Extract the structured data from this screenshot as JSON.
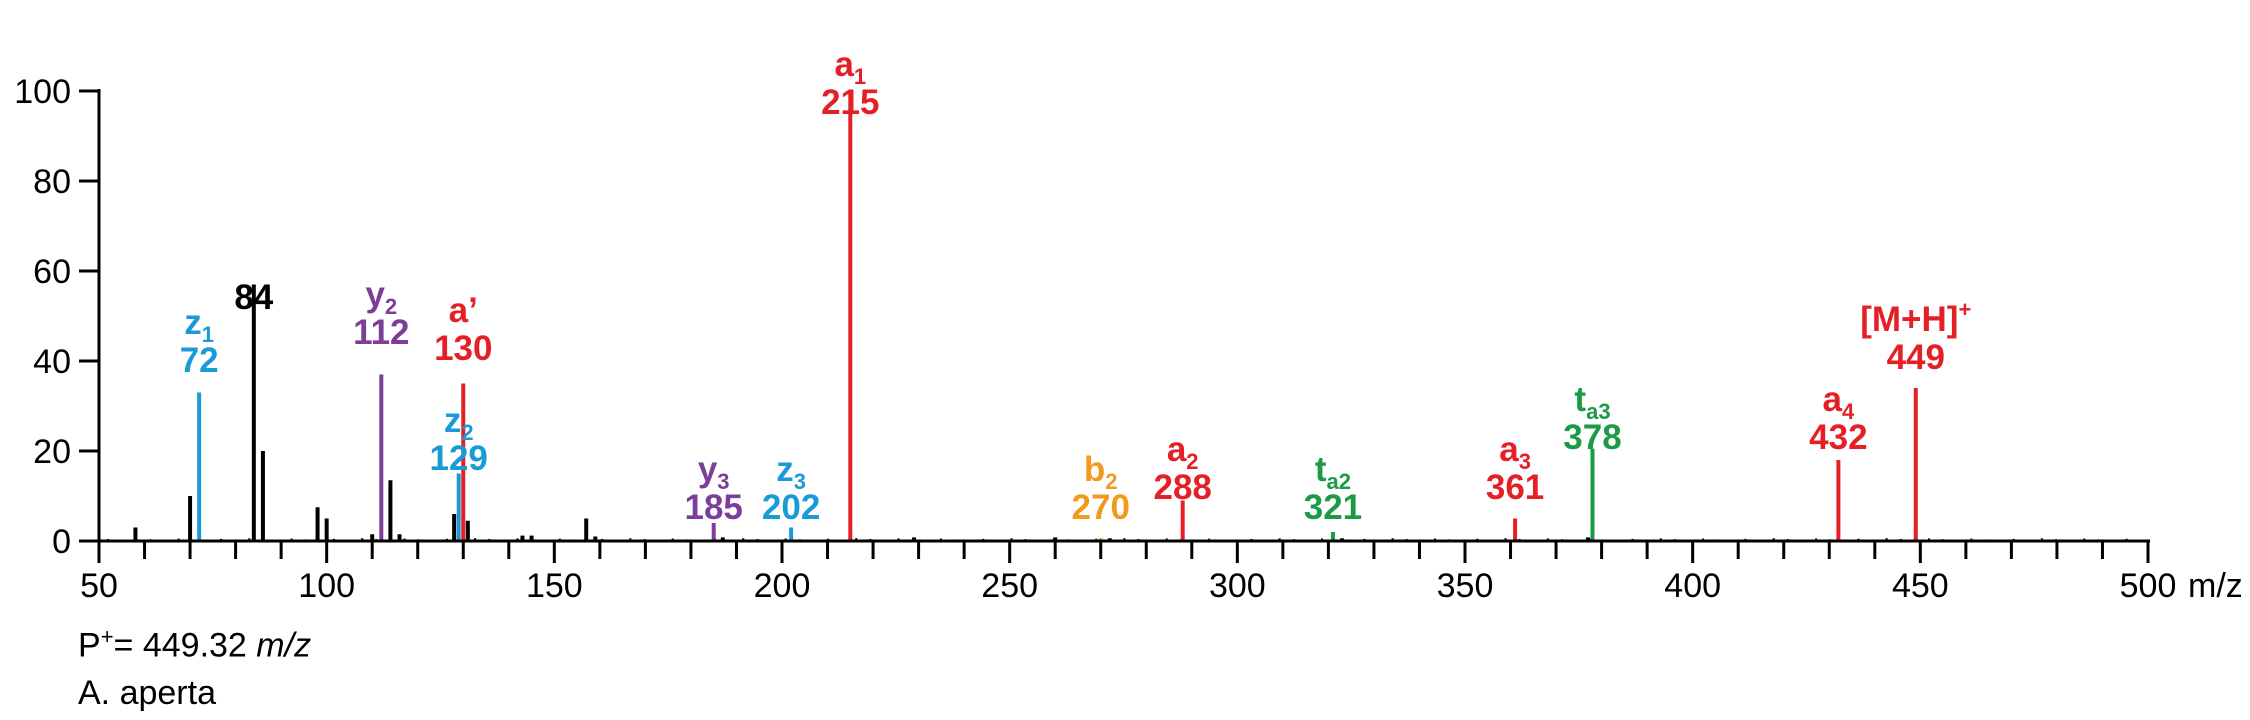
{
  "chart_data": {
    "type": "bar",
    "xlabel": "m/z",
    "ylabel": "",
    "xlim": [
      50,
      500
    ],
    "ylim": [
      0,
      100
    ],
    "x_ticks": [
      "50",
      "100",
      "150",
      "200",
      "250",
      "300",
      "350",
      "400",
      "450",
      "500"
    ],
    "y_ticks": [
      "0",
      "20",
      "40",
      "60",
      "80",
      "100"
    ],
    "grid": false,
    "colors": {
      "red": "#e41f26",
      "blue": "#1a9ad6",
      "purple": "#7b3f97",
      "orange": "#f39a1e",
      "green": "#1b9a48",
      "black": "#000000"
    },
    "annotated_peaks": [
      {
        "mz": 215,
        "intensity": 100,
        "label": "a",
        "sub": "1",
        "value": "215",
        "color": "red"
      },
      {
        "mz": 84,
        "intensity": 57,
        "label": "",
        "sub": "",
        "value": "84",
        "color": "black"
      },
      {
        "mz": 72,
        "intensity": 33,
        "label": "z",
        "sub": "1",
        "value": "72",
        "color": "blue"
      },
      {
        "mz": 112,
        "intensity": 37,
        "label": "y",
        "sub": "2",
        "value": "112",
        "color": "purple"
      },
      {
        "mz": 130,
        "intensity": 35,
        "label": "a’",
        "sub": "",
        "value": "130",
        "color": "red"
      },
      {
        "mz": 129,
        "intensity": 15,
        "label": "z",
        "sub": "2",
        "value": "129",
        "color": "blue"
      },
      {
        "mz": 185,
        "intensity": 4,
        "label": "y",
        "sub": "3",
        "value": "185",
        "color": "purple"
      },
      {
        "mz": 202,
        "intensity": 3,
        "label": "z",
        "sub": "3",
        "value": "202",
        "color": "blue"
      },
      {
        "mz": 270,
        "intensity": 0.6,
        "label": "b",
        "sub": "2",
        "value": "270",
        "color": "orange"
      },
      {
        "mz": 288,
        "intensity": 9,
        "label": "a",
        "sub": "2",
        "value": "288",
        "color": "red"
      },
      {
        "mz": 321,
        "intensity": 2,
        "label": "t",
        "sub": "a2",
        "value": "321",
        "color": "green"
      },
      {
        "mz": 361,
        "intensity": 5,
        "label": "a",
        "sub": "3",
        "value": "361",
        "color": "red"
      },
      {
        "mz": 378,
        "intensity": 20.5,
        "label": "t",
        "sub": "a3",
        "value": "378",
        "color": "green"
      },
      {
        "mz": 432,
        "intensity": 18,
        "label": "a",
        "sub": "4",
        "value": "432",
        "color": "red"
      },
      {
        "mz": 449,
        "intensity": 34,
        "label": "[M+H]",
        "sup": "+",
        "sub": "",
        "value": "449",
        "color": "red"
      }
    ],
    "minor_peaks": [
      {
        "mz": 58,
        "intensity": 3
      },
      {
        "mz": 70,
        "intensity": 10
      },
      {
        "mz": 86,
        "intensity": 20
      },
      {
        "mz": 98,
        "intensity": 7.5
      },
      {
        "mz": 100,
        "intensity": 5
      },
      {
        "mz": 114,
        "intensity": 13.5
      },
      {
        "mz": 128,
        "intensity": 6
      },
      {
        "mz": 131,
        "intensity": 4.5
      },
      {
        "mz": 157,
        "intensity": 5
      },
      {
        "mz": 110,
        "intensity": 1.5
      },
      {
        "mz": 116,
        "intensity": 1.5
      },
      {
        "mz": 143,
        "intensity": 1.2
      },
      {
        "mz": 145,
        "intensity": 1.2
      },
      {
        "mz": 159,
        "intensity": 1
      },
      {
        "mz": 187,
        "intensity": 0.8
      },
      {
        "mz": 229,
        "intensity": 0.8
      },
      {
        "mz": 260,
        "intensity": 0.8
      },
      {
        "mz": 272,
        "intensity": 0.6
      },
      {
        "mz": 323,
        "intensity": 0.6
      },
      {
        "mz": 377,
        "intensity": 0.8
      }
    ]
  },
  "footer": {
    "precursor_prefix": "P",
    "precursor_sup": "+",
    "precursor_value": "= 449.32 ",
    "precursor_unit": "m/z",
    "species": "A. aperta"
  }
}
